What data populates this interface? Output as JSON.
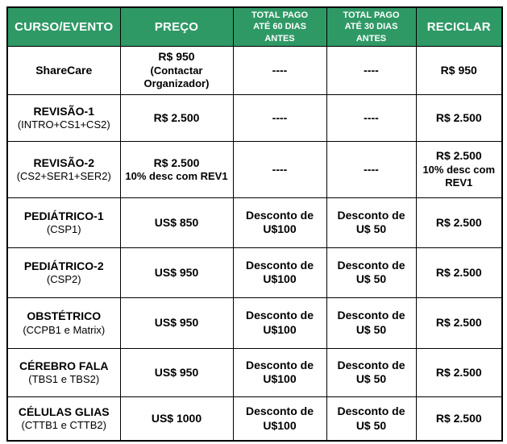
{
  "page": {
    "background_color": "#ffffff"
  },
  "table": {
    "header_bg_color": "#2F9966",
    "header_text_color": "#ffffff",
    "border_color": "#000000",
    "columns": [
      {
        "id": "course",
        "label": "CURSO/EVENTO",
        "style": "large"
      },
      {
        "id": "price",
        "label": "PREÇO",
        "style": "large"
      },
      {
        "id": "paid60",
        "label": "TOTAL PAGO\nATÉ 60 DIAS\nANTES",
        "style": "small"
      },
      {
        "id": "paid30",
        "label": "TOTAL PAGO\nATÉ 30 DIAS\nANTES",
        "style": "small"
      },
      {
        "id": "reciclar",
        "label": "RECICLAR",
        "style": "large"
      }
    ],
    "rows": [
      {
        "course": {
          "main": "ShareCare",
          "sub": ""
        },
        "price": {
          "main": "R$ 950",
          "sub": "(Contactar\nOrganizador)"
        },
        "paid60": "----",
        "paid30": "----",
        "reciclar": {
          "main": "R$ 950",
          "sub": ""
        }
      },
      {
        "course": {
          "main": "REVISÃO-1",
          "sub": "(INTRO+CS1+CS2)"
        },
        "price": {
          "main": "R$ 2.500",
          "sub": ""
        },
        "paid60": "----",
        "paid30": "----",
        "reciclar": {
          "main": "R$ 2.500",
          "sub": ""
        }
      },
      {
        "course": {
          "main": "REVISÃO-2",
          "sub": "(CS2+SER1+SER2)"
        },
        "price": {
          "main": "R$ 2.500",
          "sub": "10% desc com REV1"
        },
        "paid60": "----",
        "paid30": "----",
        "reciclar": {
          "main": "R$ 2.500",
          "sub": "10% desc com\nREV1"
        }
      },
      {
        "course": {
          "main": "PEDIÁTRICO-1",
          "sub": "(CSP1)"
        },
        "price": {
          "main": "US$ 850",
          "sub": ""
        },
        "paid60": "Desconto de\nU$100",
        "paid30": "Desconto de\nU$ 50",
        "reciclar": {
          "main": "R$ 2.500",
          "sub": ""
        }
      },
      {
        "course": {
          "main": "PEDIÁTRICO-2",
          "sub": "(CSP2)"
        },
        "price": {
          "main": "US$ 950",
          "sub": ""
        },
        "paid60": "Desconto de\nU$100",
        "paid30": "Desconto de\nU$ 50",
        "reciclar": {
          "main": "R$ 2.500",
          "sub": ""
        }
      },
      {
        "course": {
          "main": "OBSTÉTRICO",
          "sub": "(CCPB1 e Matrix)"
        },
        "price": {
          "main": "US$ 950",
          "sub": ""
        },
        "paid60": "Desconto de\nU$100",
        "paid30": "Desconto de\nU$ 50",
        "reciclar": {
          "main": "R$ 2.500",
          "sub": ""
        }
      },
      {
        "course": {
          "main": "CÉREBRO FALA",
          "sub": "(TBS1 e TBS2)"
        },
        "price": {
          "main": "US$ 950",
          "sub": ""
        },
        "paid60": "Desconto de\nU$100",
        "paid30": "Desconto de\nU$ 50",
        "reciclar": {
          "main": "R$ 2.500",
          "sub": ""
        }
      },
      {
        "course": {
          "main": "CÉLULAS GLIAS",
          "sub": "(CTTB1 e CTTB2)"
        },
        "price": {
          "main": "US$ 1000",
          "sub": ""
        },
        "paid60": "Desconto de\nU$100",
        "paid30": "Desconto de\nU$ 50",
        "reciclar": {
          "main": "R$ 2.500",
          "sub": ""
        }
      }
    ]
  }
}
